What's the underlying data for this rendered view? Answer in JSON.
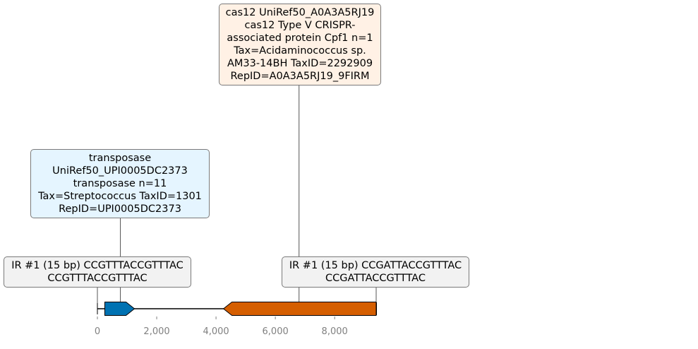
{
  "diagram": {
    "axis": {
      "min": 0,
      "max": 9400,
      "ticks": [
        0,
        2000,
        4000,
        6000,
        8000
      ],
      "tick_labels": [
        "0",
        "2,000",
        "4,000",
        "6,000",
        "8,000"
      ]
    },
    "backbone": {
      "start": 0,
      "end": 9400
    },
    "features": [
      {
        "name": "transposase",
        "start": 250,
        "end": 1250,
        "strand": "+",
        "color": "#0072b2"
      },
      {
        "name": "cas12",
        "start": 4250,
        "end": 9400,
        "strand": "-",
        "color": "#d55e00"
      }
    ],
    "labels": [
      {
        "id": "cas12-label",
        "anchor": 6800,
        "bg": "#fff1e5",
        "lines": [
          "cas12 UniRef50_A0A3A5RJ19",
          "cas12 Type V CRISPR-",
          "associated protein Cpf1 n=1",
          "Tax=Acidaminococcus sp.",
          "AM33-14BH TaxID=2292909",
          "RepID=A0A3A5RJ19_9FIRM"
        ]
      },
      {
        "id": "transposase-label",
        "anchor": 775,
        "bg": "#e5f5ff",
        "lines": [
          "transposase",
          "UniRef50_UPI0005DC2373",
          "transposase n=11",
          "Tax=Streptococcus TaxID=1301",
          "RepID=UPI0005DC2373"
        ]
      },
      {
        "id": "ir-left-label",
        "anchor": 0,
        "bg": "#f2f2f2",
        "lines": [
          "IR #1 (15 bp) CCGTTTACCGTTTAC",
          "CCGTTTACCGTTTAC"
        ]
      },
      {
        "id": "ir-right-label",
        "anchor": 9400,
        "bg": "#f2f2f2",
        "lines": [
          "IR #1 (15 bp) CCGATTACCGTTTAC",
          "CCGATTACCGTTTAC"
        ]
      }
    ]
  }
}
